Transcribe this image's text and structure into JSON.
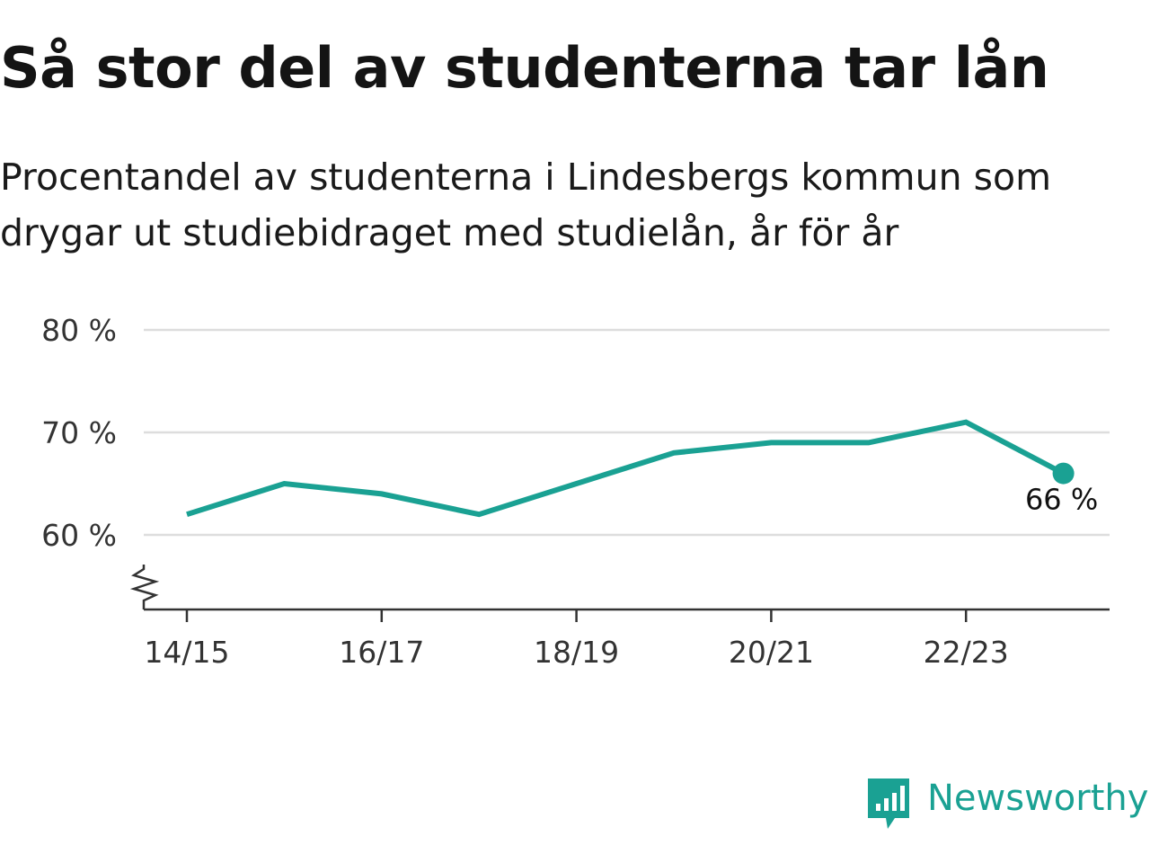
{
  "chart_data": {
    "type": "line",
    "title": "Så stor del av studenterna tar lån",
    "subtitle": "Procentandel av studenterna i Lindesbergs kommun som drygar ut studiebidraget med studielån, år för år",
    "x": [
      "14/15",
      "15/16",
      "16/17",
      "17/18",
      "18/19",
      "19/20",
      "20/21",
      "21/22",
      "22/23",
      "23/24"
    ],
    "series": [
      {
        "values": [
          62,
          65,
          64,
          62,
          65,
          68,
          69,
          69,
          71,
          66
        ]
      }
    ],
    "x_tick_labels": [
      "14/15",
      "16/17",
      "18/19",
      "20/21",
      "22/23"
    ],
    "y_ticks": [
      {
        "value": 60,
        "label": "60 %"
      },
      {
        "value": 70,
        "label": "70 %"
      },
      {
        "value": 80,
        "label": "80 %"
      }
    ],
    "ylim": [
      53,
      80
    ],
    "y_axis_break": true,
    "grid": true,
    "end_label": "66 %",
    "colors": {
      "line": "#1aa193",
      "grid": "#dddddd",
      "axis": "#333333"
    }
  },
  "brand": {
    "name": "Newsworthy",
    "icon": "bar-chart-speech-bubble-icon",
    "color": "#1aa193"
  }
}
